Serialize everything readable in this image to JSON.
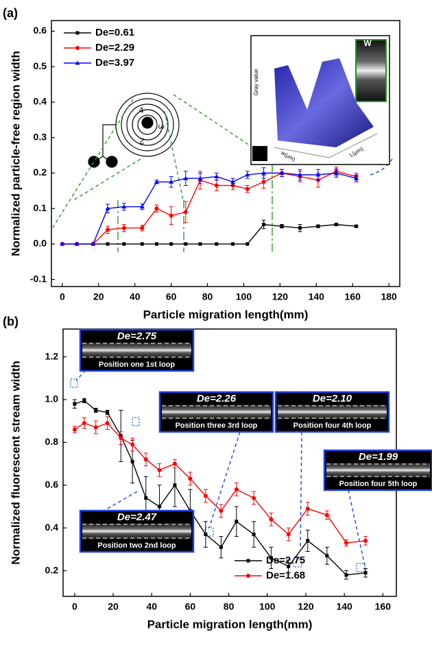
{
  "chart_data": [
    {
      "type": "line",
      "panel_label": "(a)",
      "x_label": "Particle migration length(mm)",
      "y_label": "Normalized particle-free region width",
      "xlim": [
        -6,
        186
      ],
      "ylim": [
        -0.12,
        0.63
      ],
      "xticks": [
        0,
        20,
        40,
        60,
        80,
        100,
        120,
        140,
        160,
        180
      ],
      "yticks": [
        -0.1,
        {
          "value": 0,
          "label": "0.0"
        },
        0.1,
        0.2,
        0.3,
        0.4,
        0.5,
        0.6
      ],
      "legend": "upper left",
      "x": [
        0,
        8,
        17,
        25,
        34,
        44,
        52,
        60,
        68,
        76,
        85,
        94,
        102,
        111,
        121,
        131,
        141,
        151,
        162
      ],
      "series": [
        {
          "name": "De=0.61",
          "color": "#000000",
          "marker": "square",
          "values": [
            0,
            0,
            0,
            0,
            0,
            0,
            0,
            0,
            0,
            0,
            0,
            0,
            0,
            0.055,
            0.05,
            0.045,
            0.05,
            0.055,
            0.05
          ],
          "errors": [
            0,
            0,
            0,
            0,
            0,
            0,
            0,
            0,
            0,
            0,
            0,
            0,
            0,
            0.012,
            0.005,
            0.01,
            0.004,
            0.004,
            0.003
          ]
        },
        {
          "name": "De=2.29",
          "color": "#ff0000",
          "marker": "circle",
          "values": [
            0,
            0,
            0,
            0.04,
            0.045,
            0.045,
            0.1,
            0.08,
            0.09,
            0.18,
            0.165,
            0.165,
            0.155,
            0.175,
            0.2,
            0.19,
            0.18,
            0.205,
            0.19
          ],
          "errors": [
            0,
            0,
            0,
            0.01,
            0.01,
            0.008,
            0.01,
            0.025,
            0.03,
            0.025,
            0.015,
            0.012,
            0.01,
            0.018,
            0.01,
            0.015,
            0.02,
            0.012,
            0.01
          ]
        },
        {
          "name": "De=3.97",
          "color": "#0000ff",
          "marker": "triangle",
          "values": [
            0,
            0,
            0,
            0.1,
            0.105,
            0.105,
            0.175,
            0.175,
            0.185,
            0.185,
            0.19,
            0.175,
            0.195,
            0.2,
            0.2,
            0.195,
            0.195,
            0.2,
            0.185
          ],
          "errors": [
            0,
            0,
            0,
            0.012,
            0.01,
            0.008,
            0.005,
            0.015,
            0.02,
            0.015,
            0.01,
            0.01,
            0.01,
            0.015,
            0.01,
            0.015,
            0.015,
            0.012,
            0.01
          ]
        }
      ],
      "inset_labels": [
        "Gray value",
        "w(μm)",
        "L(μm)",
        "W"
      ],
      "spiral_labels": [
        "4",
        "3",
        "2"
      ]
    },
    {
      "type": "line",
      "panel_label": "(b)",
      "x_label": "Particle migration length(mm)",
      "y_label": "Normalized fluorescent stream width",
      "xlim": [
        -6,
        167
      ],
      "ylim": [
        0.08,
        1.33
      ],
      "xticks": [
        0,
        20,
        40,
        60,
        80,
        100,
        120,
        140,
        160
      ],
      "yticks": [
        0.2,
        0.4,
        0.6,
        0.8,
        {
          "value": 1,
          "label": "1.0"
        },
        1.2
      ],
      "legend": "lower center",
      "x": [
        0,
        5,
        11,
        17,
        24,
        30,
        37,
        44,
        52,
        60,
        68,
        76,
        84,
        93,
        102,
        111,
        121,
        131,
        141,
        151
      ],
      "series": [
        {
          "name": "De=2.75",
          "color": "#000000",
          "marker": "square",
          "values": [
            0.98,
            0.995,
            0.95,
            0.94,
            0.83,
            0.71,
            0.54,
            0.5,
            0.6,
            0.48,
            0.37,
            0.31,
            0.43,
            0.37,
            0.26,
            0.22,
            0.34,
            0.27,
            0.18,
            0.19
          ],
          "errors": [
            0.02,
            0.01,
            0.01,
            0.01,
            0.12,
            0.1,
            0.1,
            0.1,
            0.1,
            0.1,
            0.06,
            0.05,
            0.07,
            0.06,
            0.05,
            0.03,
            0.05,
            0.04,
            0.02,
            0.02
          ]
        },
        {
          "name": "De=1.68",
          "color": "#ff0000",
          "marker": "circle",
          "values": [
            0.86,
            0.89,
            0.87,
            0.89,
            0.82,
            0.79,
            0.72,
            0.67,
            0.7,
            0.63,
            0.55,
            0.48,
            0.58,
            0.54,
            0.44,
            0.37,
            0.49,
            0.46,
            0.33,
            0.34
          ],
          "errors": [
            0.015,
            0.025,
            0.03,
            0.03,
            0.03,
            0.03,
            0.03,
            0.03,
            0.02,
            0.03,
            0.03,
            0.03,
            0.03,
            0.03,
            0.03,
            0.03,
            0.03,
            0.02,
            0.015,
            0.02
          ]
        }
      ],
      "insets": [
        {
          "de": "De=2.75",
          "caption": "Position one 1st loop"
        },
        {
          "de": "De=2.26",
          "caption": "Position three 3rd loop"
        },
        {
          "de": "De=2.10",
          "caption": "Position four 4th loop"
        },
        {
          "de": "De=1.99",
          "caption": "Position four 5th loop"
        },
        {
          "de": "De=2.47",
          "caption": "Position two 2nd loop"
        }
      ]
    }
  ]
}
